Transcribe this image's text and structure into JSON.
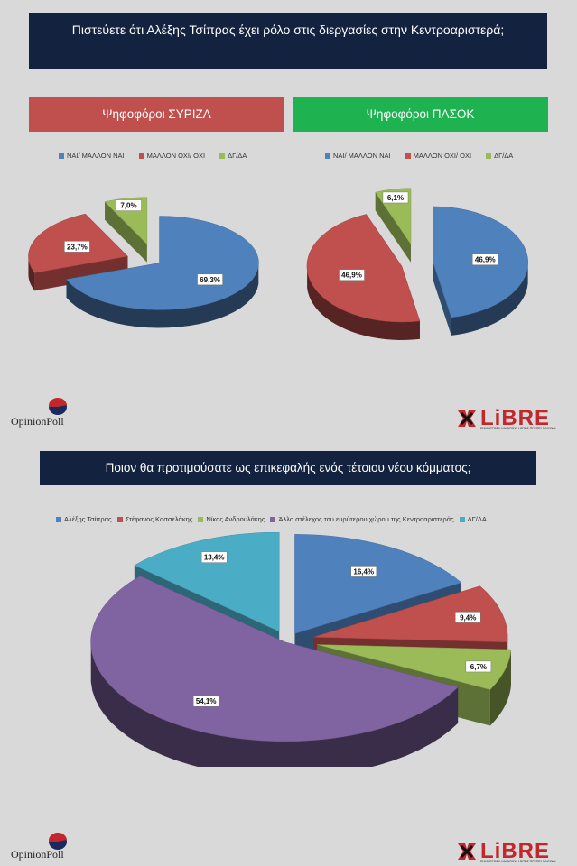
{
  "q1_title": "Πιστεύετε ότι Αλέξης Τσίπρας έχει ρόλο στις διεργασίες στην Κεντροαριστερά;",
  "q2_title": "Ποιον θα προτιμούσατε ως επικεφαλής ενός τέτοιου νέου κόμματος;",
  "brand_opinion": "OpinionPoll",
  "brand_libre": "LiBRE",
  "brand_libre_tagline": "ΕΝΗΜΕΡΩΣΗ ΚΑΙ ΑΠΟΨΗ ΟΠΩΣ ΠΡΕΠΕΙ ΝΑ ΕΙΝΑΙ",
  "colors": {
    "blue": "#4f81bd",
    "red": "#c0504d",
    "green": "#9bbb59",
    "purple": "#8064a2",
    "cyan": "#4bacc6"
  },
  "chart_data": [
    {
      "type": "pie",
      "title": "Ψηφοφόροι ΣΥΡΙΖΑ",
      "categories": [
        "ΝΑΙ/ ΜΑΛΛΟΝ ΝΑΙ",
        "ΜΑΛΛΟΝ ΟΧΙ/ ΟΧΙ",
        "ΔΓ/ΔΑ"
      ],
      "values": [
        69.3,
        23.7,
        7.0
      ],
      "labels": [
        "69,3%",
        "23,7%",
        "7,0%"
      ],
      "colors": [
        "#4f81bd",
        "#c0504d",
        "#9bbb59"
      ],
      "legend": "top"
    },
    {
      "type": "pie",
      "title": "Ψηφοφόροι ΠΑΣΟΚ",
      "categories": [
        "ΝΑΙ/ ΜΑΛΛΟΝ ΝΑΙ",
        "ΜΑΛΛΟΝ ΟΧΙ/ ΟΧΙ",
        "ΔΓ/ΔΑ"
      ],
      "values": [
        46.9,
        46.9,
        6.1
      ],
      "labels": [
        "46,9%",
        "46,9%",
        "6,1%"
      ],
      "colors": [
        "#4f81bd",
        "#c0504d",
        "#9bbb59"
      ],
      "legend": "top"
    },
    {
      "type": "pie",
      "title": "",
      "categories": [
        "Αλέξης Τσίπρας",
        "Στέφανος Κασσελάκης",
        "Νίκος Ανδρουλάκης",
        "Άλλο στέλεχος του ευρύτερου χώρου της Κεντροαριστεράς",
        "ΔΓ/ΔΑ"
      ],
      "values": [
        16.4,
        9.4,
        6.7,
        54.1,
        13.4
      ],
      "labels": [
        "16,4%",
        "9,4%",
        "6,7%",
        "54,1%",
        "13,4%"
      ],
      "colors": [
        "#4f81bd",
        "#c0504d",
        "#9bbb59",
        "#8064a2",
        "#4bacc6"
      ],
      "legend": "top"
    }
  ]
}
